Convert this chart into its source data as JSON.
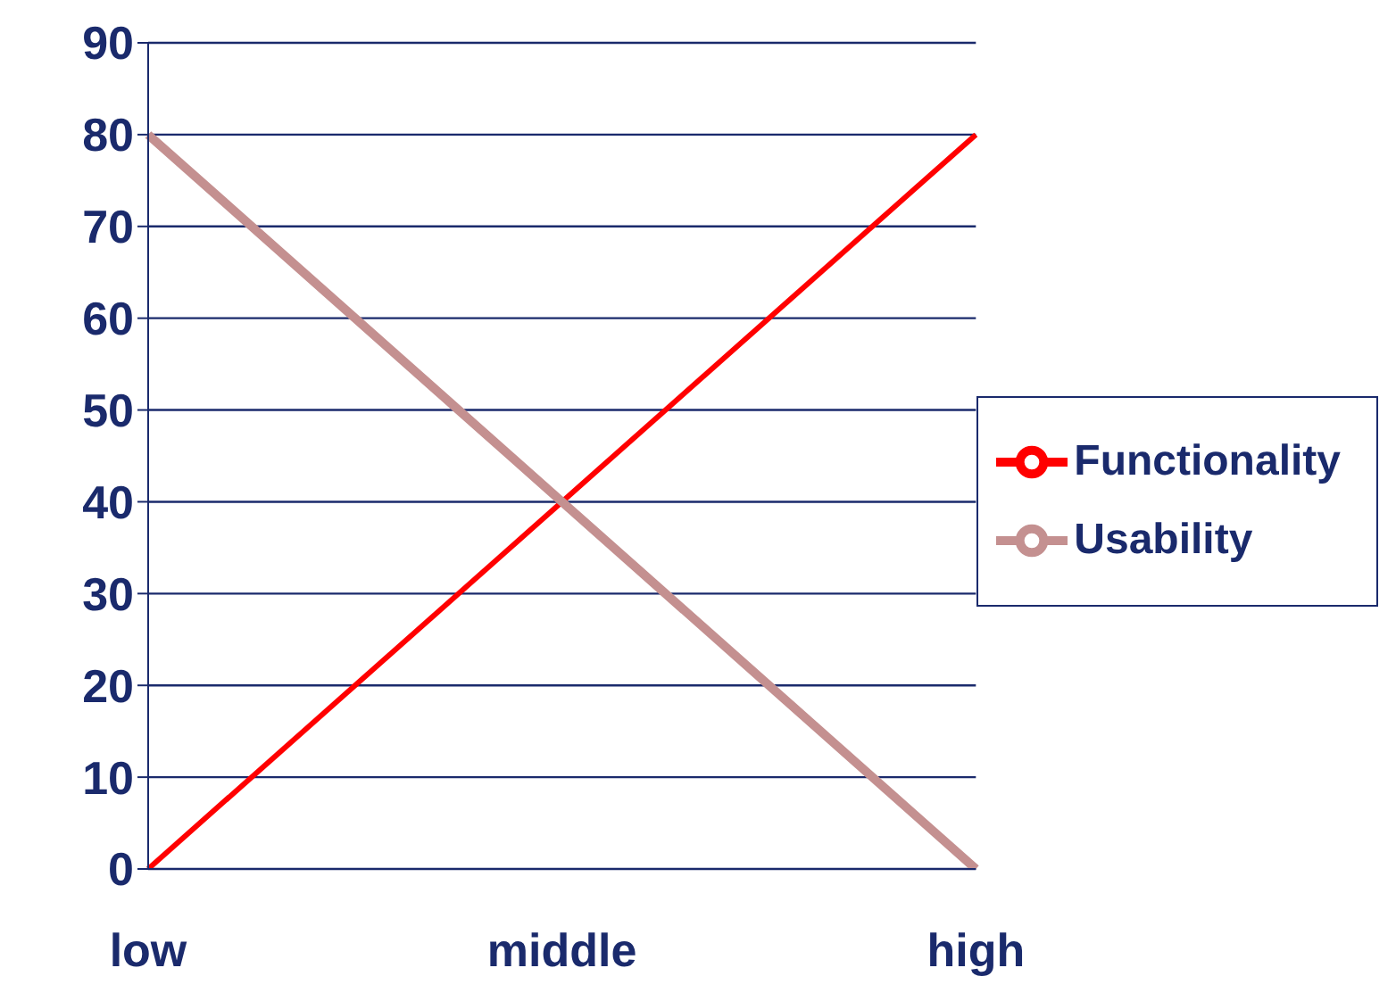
{
  "chart_data": {
    "type": "line",
    "categories": [
      "low",
      "middle",
      "high"
    ],
    "series": [
      {
        "name": "Functionality",
        "color": "#ff0000",
        "values": [
          0,
          40,
          80
        ]
      },
      {
        "name": "Usability",
        "color": "#c49090",
        "values": [
          80,
          40,
          0
        ]
      }
    ],
    "ylim": [
      0,
      90
    ],
    "yticks": [
      0,
      10,
      20,
      30,
      40,
      50,
      60,
      70,
      80,
      90
    ],
    "grid": "y",
    "legend": "right",
    "marker": "none",
    "line_style": "solid"
  }
}
